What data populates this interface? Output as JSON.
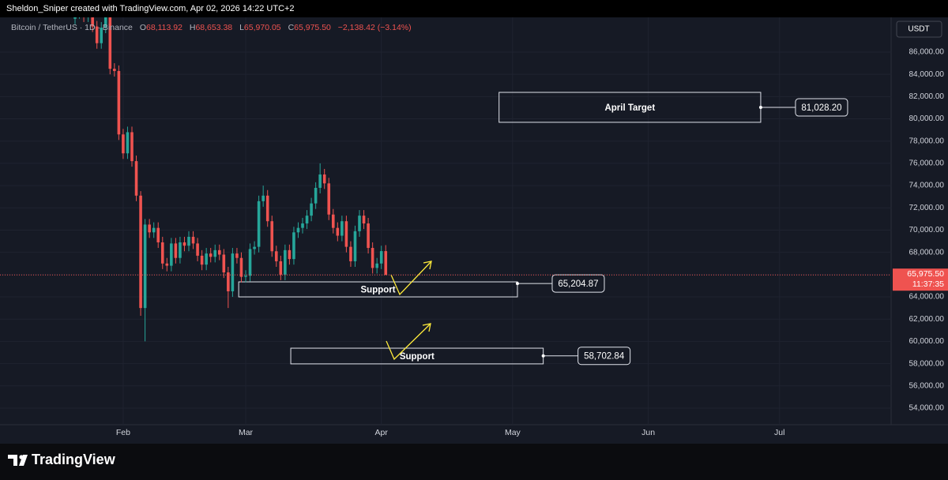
{
  "header": "Sheldon_Sniper created with TradingView.com, Apr 02, 2026 14:22 UTC+2",
  "footer": "TradingView",
  "chart_data": {
    "type": "candlestick",
    "symbol": "Bitcoin / TetherUS · 1D · Binance",
    "ohlc_legend": [
      {
        "key": "O",
        "text": "68,113.92"
      },
      {
        "key": "H",
        "text": "68,653.38"
      },
      {
        "key": "L",
        "text": "65,970.05"
      },
      {
        "key": "C",
        "text": "65,975.50"
      }
    ],
    "change_label": "−2,138.42 (−3.14%)",
    "currency": "USDT",
    "categories": [
      null,
      null,
      null,
      null,
      null,
      null,
      null,
      null,
      null,
      null,
      null,
      null,
      null,
      null,
      null,
      null,
      null,
      null,
      null,
      null,
      null,
      null,
      null,
      null,
      null,
      null,
      null,
      null,
      null,
      null,
      null,
      null,
      null,
      null,
      null,
      null,
      null,
      null,
      null,
      null,
      null,
      null,
      null,
      null,
      null,
      null,
      null,
      null,
      null,
      null,
      null,
      null,
      null,
      null,
      null,
      null,
      null,
      null,
      null,
      null,
      null,
      null,
      null,
      null,
      null,
      null,
      null,
      null,
      null,
      null,
      null,
      null
    ],
    "open": [
      89000,
      89500,
      89800,
      89200,
      89600,
      88300,
      86800,
      88200,
      89200,
      84500,
      84300,
      78600,
      76900,
      78800,
      76200,
      73100,
      63000,
      70500,
      69800,
      70200,
      68900,
      67000,
      66800,
      68800,
      67500,
      68900,
      68600,
      69400,
      68800,
      67700,
      66900,
      67900,
      67600,
      68200,
      67800,
      66200,
      64500,
      67900,
      67500,
      65800,
      65900,
      68300,
      68500,
      72600,
      73100,
      70800,
      68100,
      67200,
      66000,
      68200,
      67400,
      69800,
      70200,
      70600,
      71300,
      72400,
      73800,
      75000,
      74200,
      71400,
      70200,
      69500,
      70800,
      68500,
      67200,
      69900,
      71300,
      70600,
      68400,
      66600,
      67000,
      68113.92
    ],
    "high": [
      90000,
      90300,
      90300,
      90100,
      90100,
      88800,
      88700,
      89700,
      89700,
      85000,
      84800,
      79100,
      79300,
      79300,
      76700,
      73500,
      71000,
      71000,
      70700,
      70700,
      69400,
      67500,
      69300,
      69300,
      69400,
      69400,
      69900,
      69900,
      69300,
      68200,
      68400,
      68400,
      68700,
      68700,
      68300,
      66700,
      68400,
      68400,
      68000,
      66400,
      68800,
      69000,
      73100,
      74000,
      73600,
      71300,
      68600,
      67700,
      68700,
      68700,
      70300,
      70700,
      71100,
      71800,
      72900,
      74300,
      76000,
      75500,
      74700,
      71900,
      70700,
      71300,
      71300,
      69000,
      70400,
      71800,
      71800,
      71100,
      68900,
      67500,
      68600,
      68653.38
    ],
    "low": [
      88500,
      89000,
      88700,
      88700,
      87800,
      86300,
      86300,
      87700,
      84000,
      83800,
      78100,
      76400,
      76400,
      75700,
      72600,
      62300,
      60000,
      69300,
      69300,
      68400,
      66500,
      66300,
      66300,
      67000,
      67000,
      68100,
      68100,
      68300,
      67200,
      66400,
      66400,
      67100,
      67100,
      67300,
      65700,
      63000,
      64000,
      67000,
      65300,
      65300,
      65400,
      67800,
      68000,
      72100,
      70300,
      67600,
      66700,
      65500,
      65500,
      66900,
      66900,
      69300,
      69700,
      70100,
      70800,
      71900,
      73300,
      73700,
      70900,
      69700,
      69000,
      69000,
      68000,
      66700,
      66700,
      69400,
      70100,
      67900,
      66100,
      66100,
      66500,
      65970.05
    ],
    "close": [
      89500,
      89800,
      89200,
      89600,
      88300,
      86800,
      88200,
      89200,
      84500,
      84300,
      78600,
      76900,
      78800,
      76200,
      73100,
      63000,
      70500,
      69800,
      70200,
      68900,
      67000,
      66800,
      68800,
      67500,
      68900,
      68600,
      69400,
      68800,
      67700,
      66900,
      67900,
      67600,
      68200,
      67800,
      66200,
      64500,
      67900,
      67500,
      65800,
      65900,
      68300,
      68500,
      72600,
      73100,
      70800,
      68100,
      67200,
      66000,
      68200,
      67400,
      69800,
      70200,
      70600,
      71300,
      72400,
      73800,
      75000,
      74200,
      71400,
      70200,
      69500,
      70800,
      68500,
      67200,
      69900,
      71300,
      70600,
      68400,
      66600,
      67000,
      68113.92,
      65975.5
    ],
    "up_color": "#26a69a",
    "down_color": "#ef5350",
    "last_price": {
      "value": 65975.5,
      "label": "65,975.50",
      "countdown": "11:37:35"
    },
    "xlim": [
      -17.15,
      186.5
    ],
    "xticks": [
      {
        "value": 11,
        "label": "Feb"
      },
      {
        "value": 39,
        "label": "Mar"
      },
      {
        "value": 70,
        "label": "Apr"
      },
      {
        "value": 100,
        "label": "May"
      },
      {
        "value": 131,
        "label": "Jun"
      },
      {
        "value": 161,
        "label": "Jul"
      }
    ],
    "ylim": [
      52510,
      89120
    ],
    "yticks": [
      {
        "value": 54000,
        "label": "54,000.00"
      },
      {
        "value": 56000,
        "label": "56,000.00"
      },
      {
        "value": 58000,
        "label": "58,000.00"
      },
      {
        "value": 60000,
        "label": "60,000.00"
      },
      {
        "value": 62000,
        "label": "62,000.00"
      },
      {
        "value": 64000,
        "label": "64,000.00"
      },
      {
        "value": 66000,
        "label": "66,000.00"
      },
      {
        "value": 68000,
        "label": "68,000.00"
      },
      {
        "value": 70000,
        "label": "70,000.00"
      },
      {
        "value": 72000,
        "label": "72,000.00"
      },
      {
        "value": 74000,
        "label": "74,000.00"
      },
      {
        "value": 76000,
        "label": "76,000.00"
      },
      {
        "value": 78000,
        "label": "78,000.00"
      },
      {
        "value": 80000,
        "label": "80,000.00"
      },
      {
        "value": 82000,
        "label": "82,000.00"
      },
      {
        "value": 84000,
        "label": "84,000.00"
      },
      {
        "value": 86000,
        "label": "86,000.00"
      }
    ],
    "grid": true,
    "zones": [
      {
        "label": "April Target",
        "x0": 96.9,
        "x1": 156.7,
        "top": 82380,
        "bottom": 79690,
        "price": 81028.2,
        "price_label": "81,028.20"
      },
      {
        "label": "Support",
        "x0": 37.4,
        "x1": 101.1,
        "top": 65350,
        "bottom": 64000,
        "price": 65204.87,
        "price_label": "65,204.87"
      },
      {
        "label": "Support",
        "x0": 49.3,
        "x1": 107.0,
        "top": 59390,
        "bottom": 57980,
        "price": 58702.84,
        "price_label": "58,702.84"
      }
    ]
  }
}
